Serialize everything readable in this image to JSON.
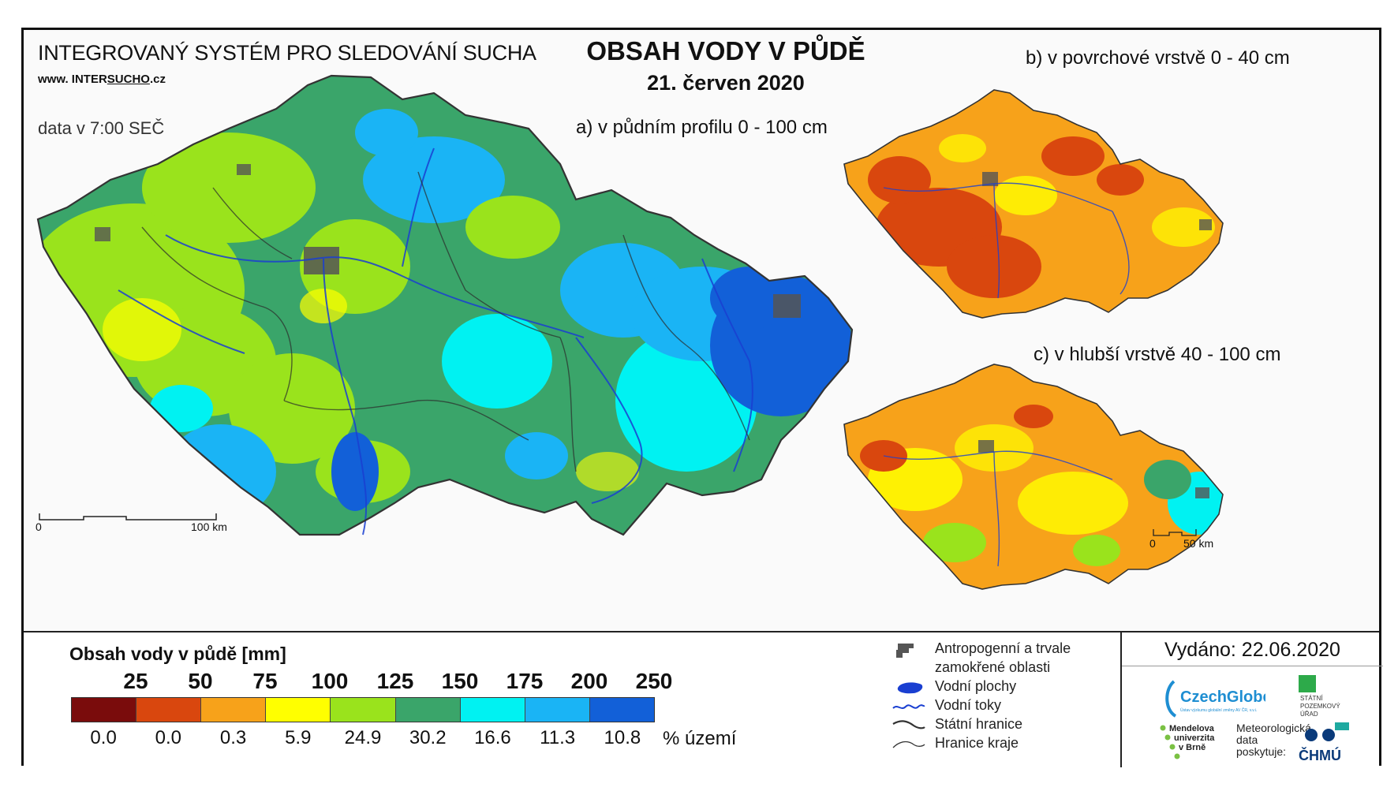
{
  "header": {
    "org_title": "INTEGROVANÝ SYSTÉM PRO SLEDOVÁNÍ SUCHA",
    "url_prefix": "www. INTER",
    "url_highlight": "SUCHO",
    "url_suffix": ".cz",
    "data_time": "data v 7:00 SEČ",
    "main_title": "OBSAH VODY V PŮDĚ",
    "date": "21. červen 2020"
  },
  "maps": {
    "a_label": "a) v půdním profilu 0 - 100 cm",
    "b_label": "b) v povrchové vrstvě 0 - 40 cm",
    "c_label": "c) v hlubší vrstvě 40 - 100 cm",
    "scale_main": {
      "start": "0",
      "end": "100 km"
    },
    "scale_small": {
      "start": "0",
      "end": "50 km"
    }
  },
  "legend": {
    "title": "Obsah vody v půdě  [mm]",
    "thresholds": [
      "25",
      "50",
      "75",
      "100",
      "125",
      "150",
      "175",
      "200",
      "250"
    ],
    "colors": [
      "#7a0c0c",
      "#d9470e",
      "#f7a21a",
      "#ffff00",
      "#9ae31c",
      "#3aa56a",
      "#00f2f2",
      "#1ab4f5",
      "#1260d8"
    ],
    "percentages": [
      "0.0",
      "0.0",
      "0.3",
      "5.9",
      "24.9",
      "30.2",
      "16.6",
      "11.3",
      "10.8"
    ],
    "percent_unit": "% území"
  },
  "symbols": [
    {
      "icon": "anthropogenic-area-icon",
      "label": "Antropogenní a trvale"
    },
    {
      "icon": "",
      "label": "zamokřené oblasti"
    },
    {
      "icon": "water-body-icon",
      "label": "Vodní plochy"
    },
    {
      "icon": "river-icon",
      "label": "Vodní toky"
    },
    {
      "icon": "state-border-icon",
      "label": "Státní hranice"
    },
    {
      "icon": "region-border-icon",
      "label": "Hranice kraje"
    }
  ],
  "issued": "Vydáno: 22.06.2020",
  "logos": {
    "czechglobe": "CzechGlobe",
    "czechglobe_sub": "Ústav výzkumu globální změny AV ČR, v.v.i.",
    "spu_line1": "STÁTNÍ",
    "spu_line2": "POZEMKOVÝ",
    "spu_line3": "ÚŘAD",
    "mu_line1": "Mendelova",
    "mu_line2": "univerzita",
    "mu_line3": "v Brně",
    "met_line1": "Meteorologická",
    "met_line2": "data",
    "met_line3": "poskytuje:",
    "chmu": "ČHMÚ"
  }
}
